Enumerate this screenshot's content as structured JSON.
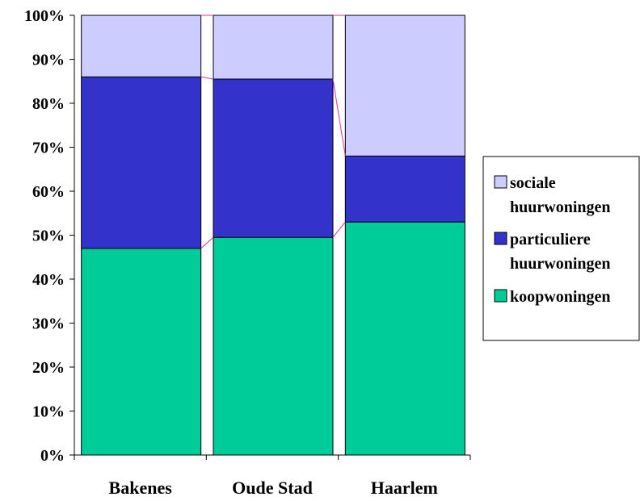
{
  "chart_data": {
    "type": "bar",
    "stacked": true,
    "percent": true,
    "categories": [
      "Bakenes",
      "Oude Stad",
      "Haarlem"
    ],
    "series": [
      {
        "name": "koopwoningen",
        "values": [
          47,
          49.5,
          53
        ],
        "color": "#00CC99"
      },
      {
        "name": "particuliere huurwoningen",
        "values": [
          39,
          36,
          15
        ],
        "color": "#3333CC"
      },
      {
        "name": "sociale huurwoningen",
        "values": [
          14,
          14.5,
          32
        ],
        "color": "#CCCCFF"
      }
    ],
    "legend_order": [
      {
        "lines": [
          "sociale",
          "huurwoningen"
        ],
        "color": "#CCCCFF"
      },
      {
        "lines": [
          "particuliere",
          "huurwoningen"
        ],
        "color": "#3333CC"
      },
      {
        "lines": [
          "koopwoningen"
        ],
        "color": "#00CC99"
      }
    ],
    "ylim": [
      0,
      100
    ],
    "yticks": [
      "0%",
      "10%",
      "20%",
      "30%",
      "40%",
      "50%",
      "60%",
      "70%",
      "80%",
      "90%",
      "100%"
    ],
    "series_lines_color": "#CC3399",
    "legend_position": "right",
    "grid": false,
    "title": "",
    "xlabel": "",
    "ylabel": ""
  }
}
